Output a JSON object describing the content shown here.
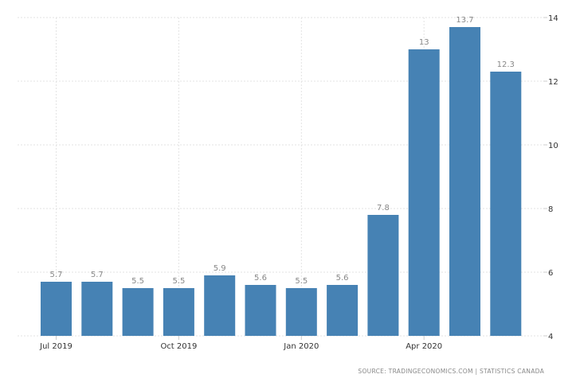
{
  "chart_data": {
    "type": "bar",
    "categories": [
      "Jul 2019",
      "Aug 2019",
      "Sep 2019",
      "Oct 2019",
      "Nov 2019",
      "Dec 2019",
      "Jan 2020",
      "Feb 2020",
      "Mar 2020",
      "Apr 2020",
      "May 2020",
      "Jun 2020"
    ],
    "values": [
      5.7,
      5.7,
      5.5,
      5.5,
      5.9,
      5.6,
      5.5,
      5.6,
      7.8,
      13,
      13.7,
      12.3
    ],
    "data_labels": [
      "5.7",
      "5.7",
      "5.5",
      "5.5",
      "5.9",
      "5.6",
      "5.5",
      "5.6",
      "7.8",
      "13",
      "13.7",
      "12.3"
    ],
    "x_tick_labels": [
      {
        "category_index": 0,
        "label": "Jul 2019"
      },
      {
        "category_index": 3,
        "label": "Oct 2019"
      },
      {
        "category_index": 6,
        "label": "Jan 2020"
      },
      {
        "category_index": 9,
        "label": "Apr 2020"
      }
    ],
    "y_ticks": [
      4,
      6,
      8,
      10,
      12,
      14
    ],
    "ylim": [
      4,
      14
    ],
    "y_axis_side": "right",
    "grid": true,
    "bar_color": "#4682b4",
    "title": "",
    "xlabel": "",
    "ylabel": ""
  },
  "source": "SOURCE:  TRADINGECONOMICS.COM  |  STATISTICS  CANADA"
}
